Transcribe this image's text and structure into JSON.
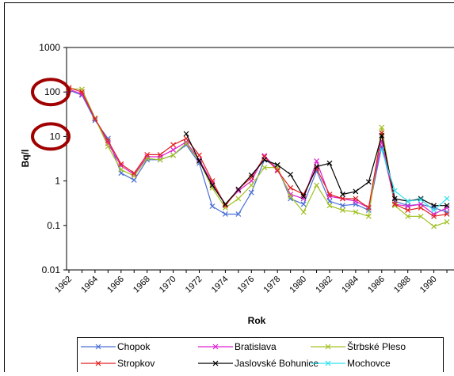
{
  "chart_data": {
    "type": "line",
    "title": "",
    "xlabel": "Rok",
    "ylabel": "Bq/l",
    "y_scale": "log",
    "ylim": [
      0.01,
      1000
    ],
    "xlim": [
      1962,
      1991
    ],
    "y_ticks": [
      "0.01",
      "0.1",
      "1",
      "10",
      "100",
      "1000"
    ],
    "x_ticks": [
      "1962",
      "1964",
      "1966",
      "1968",
      "1970",
      "1972",
      "1974",
      "1976",
      "1978",
      "1980",
      "1982",
      "1984",
      "1986",
      "1988",
      "1990"
    ],
    "grid": false,
    "legend_position": "bottom",
    "highlighted_ticks": [
      "100",
      "10"
    ],
    "highlight_color": "#a00000",
    "series": [
      {
        "name": "Chopok",
        "color": "#4a6fd6",
        "marker": "x",
        "x": [
          1962,
          1963,
          1964,
          1965,
          1966,
          1967,
          1968,
          1969,
          1970,
          1971,
          1972,
          1973,
          1974,
          1975,
          1976,
          1977,
          1978,
          1979,
          1980,
          1981,
          1982,
          1983,
          1984,
          1985,
          1986,
          1987,
          1988,
          1989,
          1990,
          1991
        ],
        "y": [
          110,
          85,
          23,
          9,
          1.5,
          1.05,
          3,
          3,
          3.8,
          6.5,
          2.5,
          0.27,
          0.18,
          0.18,
          0.55,
          3,
          2,
          0.4,
          0.3,
          1.7,
          0.35,
          0.28,
          0.3,
          0.22,
          6,
          0.35,
          0.28,
          0.3,
          0.25,
          0.2
        ]
      },
      {
        "name": "Bratislava",
        "color": "#e020d0",
        "marker": "x",
        "x": [
          1962,
          1963,
          1964,
          1965,
          1966,
          1967,
          1968,
          1969,
          1970,
          1971,
          1972,
          1973,
          1974,
          1975,
          1976,
          1977,
          1978,
          1979,
          1980,
          1981,
          1982,
          1983,
          1984,
          1985,
          1986,
          1987,
          1988,
          1989,
          1990,
          1991
        ],
        "y": [
          115,
          90,
          25,
          7,
          2.2,
          1.4,
          3.5,
          3.5,
          5,
          7.5,
          3,
          0.9,
          0.3,
          0.6,
          1,
          3.7,
          1.8,
          0.5,
          0.4,
          2.8,
          0.45,
          0.4,
          0.35,
          0.25,
          8,
          0.3,
          0.27,
          0.3,
          0.18,
          0.25
        ]
      },
      {
        "name": "Štrbské Pleso",
        "color": "#a0c020",
        "marker": "x",
        "x": [
          1962,
          1963,
          1964,
          1965,
          1966,
          1967,
          1968,
          1969,
          1970,
          1971,
          1972,
          1973,
          1974,
          1975,
          1976,
          1977,
          1978,
          1979,
          1980,
          1981,
          1982,
          1983,
          1984,
          1985,
          1986,
          1987,
          1988,
          1989,
          1990,
          1991
        ],
        "y": [
          120,
          115,
          26,
          6,
          1.8,
          1.3,
          3.2,
          3,
          3.8,
          7,
          2.8,
          0.7,
          0.25,
          0.4,
          0.8,
          2,
          2,
          0.45,
          0.2,
          0.8,
          0.28,
          0.22,
          0.2,
          0.16,
          16,
          0.28,
          0.16,
          0.16,
          0.095,
          0.12
        ]
      },
      {
        "name": "Stropkov",
        "color": "#e02020",
        "marker": "x",
        "x": [
          1962,
          1963,
          1964,
          1965,
          1966,
          1967,
          1968,
          1969,
          1970,
          1971,
          1972,
          1973,
          1974,
          1975,
          1976,
          1977,
          1978,
          1979,
          1980,
          1981,
          1982,
          1983,
          1984,
          1985,
          1986,
          1987,
          1988,
          1989,
          1990,
          1991
        ],
        "y": [
          125,
          100,
          25,
          8,
          2.4,
          1.5,
          3.9,
          3.9,
          6.5,
          9,
          3.8,
          1,
          0.28,
          0.65,
          1.2,
          3.5,
          1.7,
          0.7,
          0.5,
          1.9,
          0.5,
          0.4,
          0.4,
          0.25,
          12,
          0.3,
          0.22,
          0.25,
          0.16,
          0.18
        ]
      },
      {
        "name": "Jaslovské Bohunice",
        "color": "#000000",
        "marker": "x",
        "x": [
          1971,
          1972,
          1973,
          1974,
          1975,
          1976,
          1977,
          1978,
          1979,
          1980,
          1981,
          1982,
          1983,
          1984,
          1985,
          1986,
          1987,
          1988,
          1989,
          1990,
          1991
        ],
        "y": [
          11.5,
          2.8,
          0.8,
          0.3,
          0.65,
          1.35,
          3,
          2.3,
          1.4,
          0.45,
          2.1,
          2.5,
          0.5,
          0.58,
          0.95,
          10.5,
          0.4,
          0.35,
          0.4,
          0.28,
          0.28
        ]
      },
      {
        "name": "Mochovce",
        "color": "#30e0ee",
        "marker": "x",
        "x": [
          1986,
          1987,
          1988,
          1989,
          1990,
          1991
        ],
        "y": [
          5,
          0.6,
          0.35,
          0.38,
          0.22,
          0.4
        ]
      }
    ]
  }
}
